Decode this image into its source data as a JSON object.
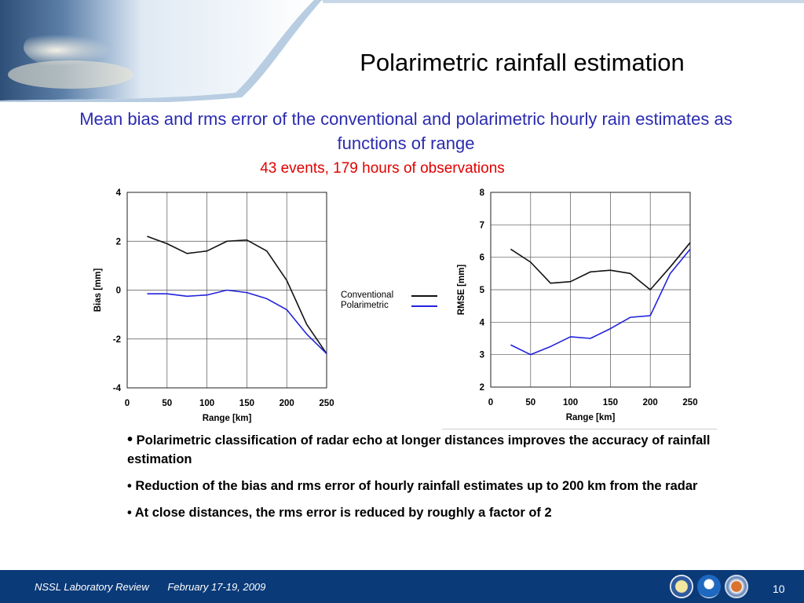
{
  "slide": {
    "title": "Polarimetric rainfall estimation",
    "subtitle": "Mean bias and rms error of the conventional and polarimetric hourly rain estimates as functions of range",
    "obs_note": "43 events, 179 hours of observations",
    "bullets": [
      "Polarimetric classification of radar echo at longer distances improves the accuracy of rainfall estimation",
      "Reduction of the bias and rms error of hourly rainfall estimates up to 200 km from the radar",
      "At close distances, the rms error is reduced by roughly a factor of 2"
    ],
    "bullet_glyph": "•"
  },
  "legend": {
    "items": [
      {
        "label": "Conventional",
        "color": "#111111"
      },
      {
        "label": "Polarimetric",
        "color": "#2222dd"
      }
    ]
  },
  "footer": {
    "org": "NSSL Laboratory Review",
    "date": "February 17-19, 2009",
    "page": "10",
    "logos": [
      "doc-seal-icon",
      "noaa-logo-icon",
      "nssl-logo-icon"
    ]
  },
  "colors": {
    "conventional": "#111111",
    "polarimetric": "#2222dd",
    "footer_bg": "#0a3a78",
    "subtitle": "#2b2bb0",
    "note": "#e00000"
  },
  "chart_data": [
    {
      "type": "line",
      "xlabel": "Range [km]",
      "ylabel": "Bias [mm]",
      "xlim": [
        0,
        250
      ],
      "ylim": [
        -4,
        4
      ],
      "xticks": [
        0,
        50,
        100,
        150,
        200,
        250
      ],
      "yticks": [
        -4,
        -2,
        0,
        2,
        4
      ],
      "grid": true,
      "x": [
        25,
        50,
        75,
        100,
        125,
        150,
        175,
        200,
        225,
        250
      ],
      "series": [
        {
          "name": "Conventional",
          "values": [
            2.2,
            1.9,
            1.5,
            1.6,
            2.0,
            2.05,
            1.6,
            0.4,
            -1.4,
            -2.6
          ]
        },
        {
          "name": "Polarimetric",
          "values": [
            -0.15,
            -0.15,
            -0.25,
            -0.2,
            0.0,
            -0.1,
            -0.35,
            -0.8,
            -1.8,
            -2.6
          ]
        }
      ]
    },
    {
      "type": "line",
      "xlabel": "Range [km]",
      "ylabel": "RMSE [mm]",
      "xlim": [
        0,
        250
      ],
      "ylim": [
        2,
        8
      ],
      "xticks": [
        0,
        50,
        100,
        150,
        200,
        250
      ],
      "yticks": [
        2,
        3,
        4,
        5,
        6,
        7,
        8
      ],
      "grid": true,
      "x": [
        25,
        50,
        75,
        100,
        125,
        150,
        175,
        200,
        225,
        250
      ],
      "series": [
        {
          "name": "Conventional",
          "values": [
            6.25,
            5.85,
            5.2,
            5.25,
            5.55,
            5.6,
            5.5,
            5.0,
            5.7,
            6.45
          ]
        },
        {
          "name": "Polarimetric",
          "values": [
            3.3,
            3.0,
            3.25,
            3.55,
            3.5,
            3.8,
            4.15,
            4.2,
            5.5,
            6.25
          ]
        }
      ]
    }
  ]
}
